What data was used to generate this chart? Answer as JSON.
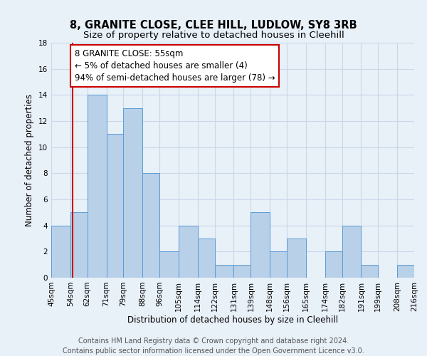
{
  "title": "8, GRANITE CLOSE, CLEE HILL, LUDLOW, SY8 3RB",
  "subtitle": "Size of property relative to detached houses in Cleehill",
  "xlabel": "Distribution of detached houses by size in Cleehill",
  "ylabel": "Number of detached properties",
  "bin_edges": [
    45,
    54,
    62,
    71,
    79,
    88,
    96,
    105,
    114,
    122,
    131,
    139,
    148,
    156,
    165,
    174,
    182,
    191,
    199,
    208,
    216
  ],
  "bin_labels": [
    "45sqm",
    "54sqm",
    "62sqm",
    "71sqm",
    "79sqm",
    "88sqm",
    "96sqm",
    "105sqm",
    "114sqm",
    "122sqm",
    "131sqm",
    "139sqm",
    "148sqm",
    "156sqm",
    "165sqm",
    "174sqm",
    "182sqm",
    "191sqm",
    "199sqm",
    "208sqm",
    "216sqm"
  ],
  "counts": [
    4,
    5,
    14,
    11,
    13,
    8,
    2,
    4,
    3,
    1,
    1,
    5,
    2,
    3,
    0,
    2,
    4,
    1,
    0,
    1
  ],
  "bar_color": "#b8d0e8",
  "bar_edge_color": "#5b9bd5",
  "property_value": 55,
  "property_line_color": "#cc0000",
  "annotation_title": "8 GRANITE CLOSE: 55sqm",
  "annotation_line1": "← 5% of detached houses are smaller (4)",
  "annotation_line2": "94% of semi-detached houses are larger (78) →",
  "annotation_box_edge_color": "#cc0000",
  "ylim": [
    0,
    18
  ],
  "yticks": [
    0,
    2,
    4,
    6,
    8,
    10,
    12,
    14,
    16,
    18
  ],
  "footer_line1": "Contains HM Land Registry data © Crown copyright and database right 2024.",
  "footer_line2": "Contains public sector information licensed under the Open Government Licence v3.0.",
  "bg_color": "#e8f0f8",
  "plot_bg_color": "#e8f0f8",
  "grid_color": "#c8d8e8",
  "title_fontsize": 10.5,
  "subtitle_fontsize": 9.5,
  "axis_label_fontsize": 8.5,
  "tick_fontsize": 7.5,
  "annotation_fontsize": 8.5,
  "footer_fontsize": 7.0
}
